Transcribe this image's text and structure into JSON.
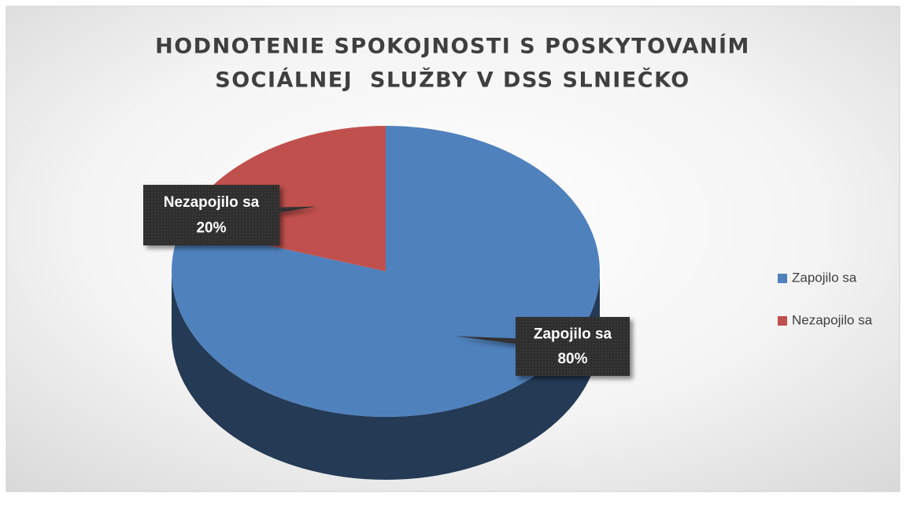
{
  "chart_data": {
    "type": "pie",
    "title": [
      "HODNOTENIE SPOKOJNOSTI S POSKYTOVANÍM",
      "SOCIÁLNEJ  SLUŽBY V DSS SLNIEČKO"
    ],
    "categories": [
      "Zapojilo sa",
      "Nezapojilo sa"
    ],
    "values": [
      80,
      20
    ],
    "value_labels": [
      "80%",
      "20%"
    ],
    "colors": [
      "#4f81bd",
      "#c0504d"
    ],
    "legend": "right"
  }
}
